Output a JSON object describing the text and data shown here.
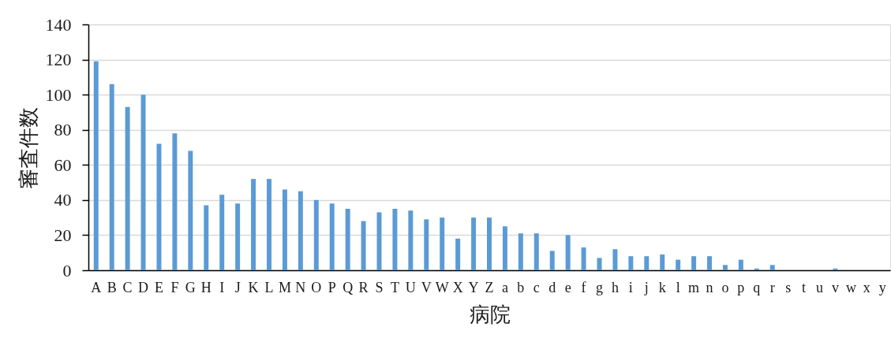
{
  "chart_data": {
    "type": "bar",
    "xlabel": "病院",
    "ylabel": "審査件数",
    "categories": [
      "A",
      "B",
      "C",
      "D",
      "E",
      "F",
      "G",
      "H",
      "I",
      "J",
      "K",
      "L",
      "M",
      "N",
      "O",
      "P",
      "Q",
      "R",
      "S",
      "T",
      "U",
      "V",
      "W",
      "X",
      "Y",
      "Z",
      "a",
      "b",
      "c",
      "d",
      "e",
      "f",
      "g",
      "h",
      "i",
      "j",
      "k",
      "l",
      "m",
      "n",
      "o",
      "p",
      "q",
      "r",
      "s",
      "t",
      "u",
      "v",
      "w",
      "x",
      "y"
    ],
    "values": [
      119,
      106,
      93,
      100,
      72,
      78,
      68,
      37,
      43,
      38,
      52,
      52,
      46,
      45,
      40,
      38,
      35,
      28,
      33,
      35,
      34,
      29,
      30,
      18,
      30,
      30,
      25,
      21,
      21,
      11,
      20,
      13,
      7,
      12,
      8,
      8,
      9,
      6,
      8,
      8,
      3,
      6,
      1,
      3,
      0,
      0,
      0,
      1,
      0,
      0,
      0
    ],
    "color": "#5b9bd5",
    "ylim": [
      0,
      140
    ],
    "yticks": [
      0,
      20,
      40,
      60,
      80,
      100,
      120,
      140
    ],
    "grid": "y"
  }
}
